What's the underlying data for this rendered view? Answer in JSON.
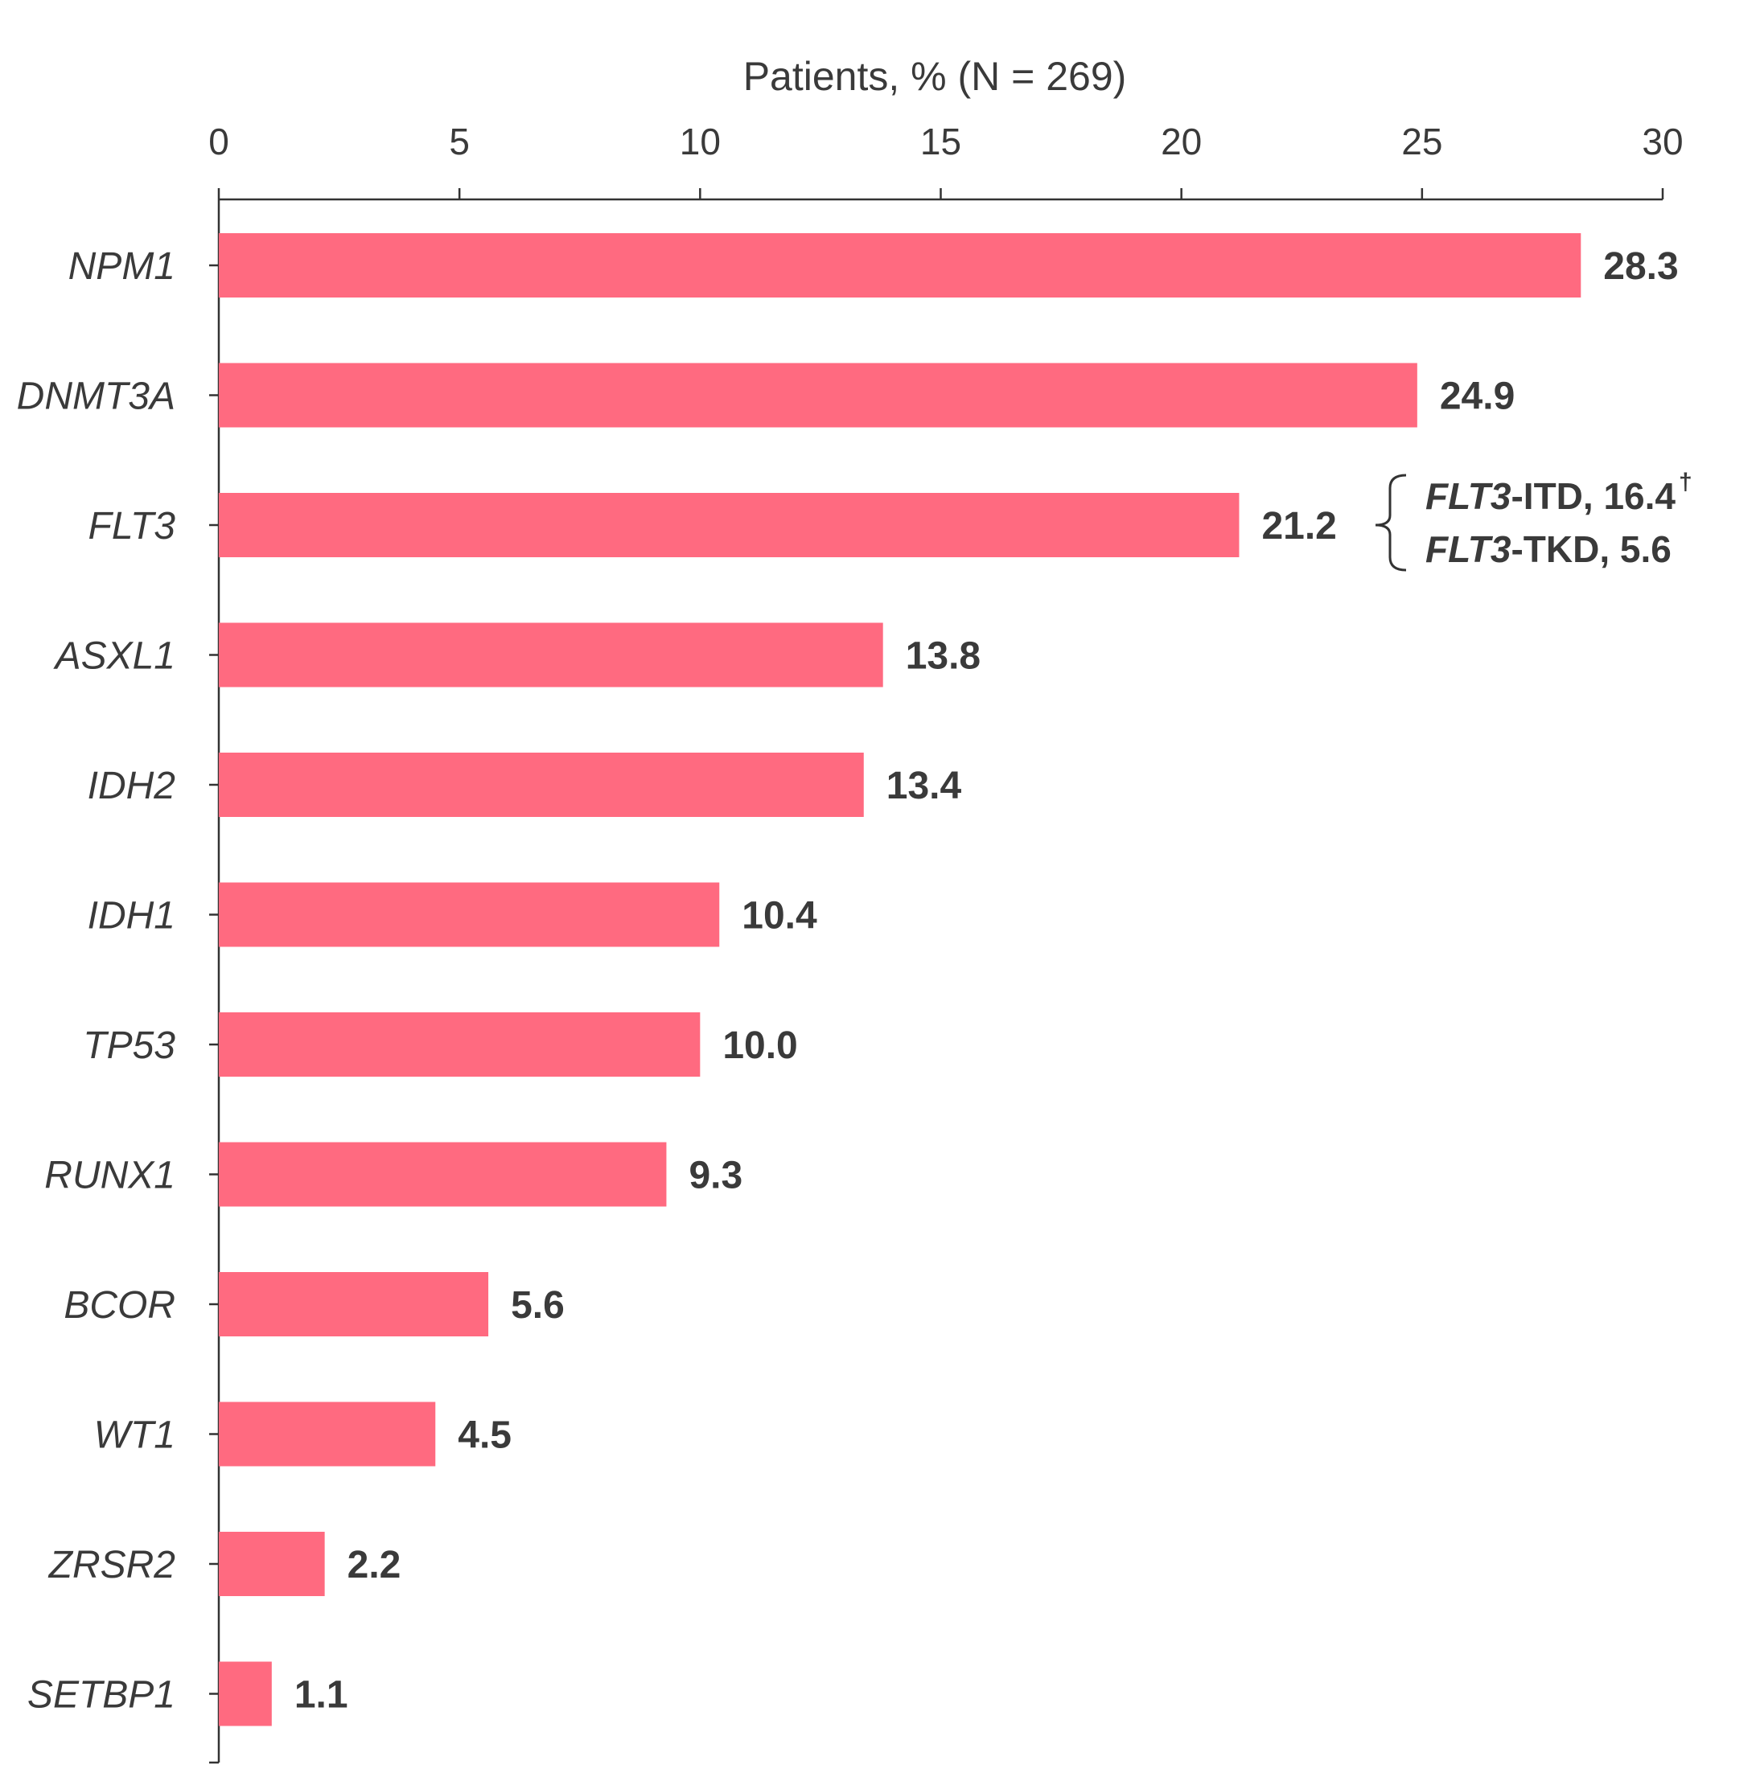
{
  "chart_data": {
    "type": "bar",
    "orientation": "horizontal",
    "xlabel": "Patients, % (N = 269)",
    "xlim": [
      0,
      30
    ],
    "xticks": [
      "0",
      "5",
      "10",
      "15",
      "20",
      "25",
      "30"
    ],
    "grid": false,
    "bar_color": "#ff6a80",
    "categories": [
      "NPM1",
      "DNMT3A",
      "FLT3",
      "ASXL1",
      "IDH2",
      "IDH1",
      "TP53",
      "RUNX1",
      "BCOR",
      "WT1",
      "ZRSR2",
      "SETBP1"
    ],
    "values": [
      28.3,
      24.9,
      21.2,
      13.8,
      13.4,
      10.4,
      10.0,
      9.3,
      5.6,
      4.5,
      2.2,
      1.1
    ],
    "value_labels": [
      "28.3",
      "24.9",
      "21.2",
      "13.8",
      "13.4",
      "10.4",
      "10.0",
      "9.3",
      "5.6",
      "4.5",
      "2.2",
      "1.1"
    ],
    "annotation": {
      "category": "FLT3",
      "items": [
        {
          "gene": "FLT3",
          "suffix": "-ITD, 16.4",
          "superscript": "†",
          "value": 16.4
        },
        {
          "gene": "FLT3",
          "suffix": "-TKD, 5.6",
          "superscript": "",
          "value": 5.6
        }
      ]
    }
  }
}
